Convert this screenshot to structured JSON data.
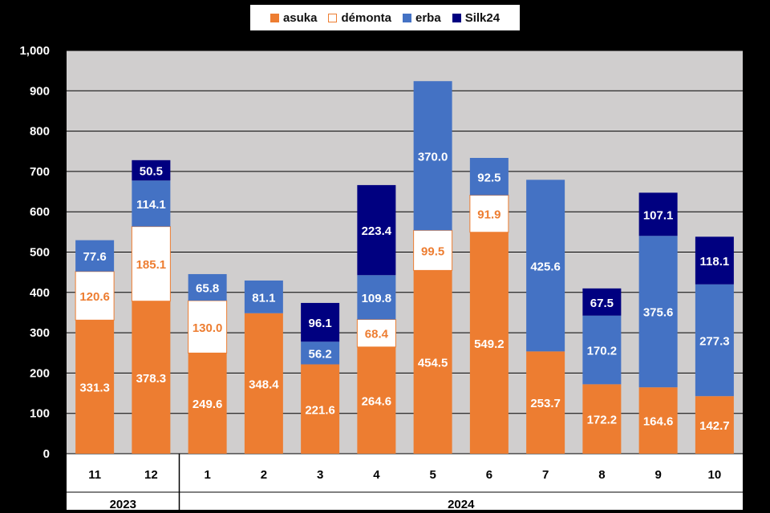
{
  "chart_data": {
    "type": "bar",
    "stacked": true,
    "categories": [
      "11",
      "12",
      "1",
      "2",
      "3",
      "4",
      "5",
      "6",
      "7",
      "8",
      "9",
      "10"
    ],
    "year_groups": [
      {
        "label": "2023",
        "count": 2
      },
      {
        "label": "2024",
        "count": 10
      }
    ],
    "series": [
      {
        "name": "asuka",
        "color": "#ED7D31",
        "label_color": "#FFFFFF",
        "values": [
          331.3,
          378.3,
          249.6,
          348.4,
          221.6,
          264.6,
          454.5,
          549.2,
          253.7,
          172.2,
          164.6,
          142.7
        ]
      },
      {
        "name": "démonta",
        "color": "#FFFFFF",
        "label_color": "#ED7D31",
        "values": [
          120.6,
          185.1,
          130.0,
          null,
          null,
          68.4,
          99.5,
          91.9,
          null,
          null,
          null,
          null
        ]
      },
      {
        "name": "erba",
        "color": "#4472C4",
        "label_color": "#FFFFFF",
        "values": [
          77.6,
          114.1,
          65.8,
          81.1,
          56.2,
          109.8,
          370.0,
          92.5,
          425.6,
          170.2,
          375.6,
          277.3
        ]
      },
      {
        "name": "Silk24",
        "color": "#000080",
        "label_color": "#FFFFFF",
        "values": [
          null,
          50.5,
          null,
          null,
          96.1,
          223.4,
          null,
          null,
          null,
          67.5,
          107.1,
          118.1
        ]
      }
    ],
    "value_labels": [
      [
        "331.3",
        "378.3",
        "249.6",
        "348.4",
        "221.6",
        "264.6",
        "454.5",
        "549.2",
        "253.7",
        "172.2",
        "164.6",
        "142.7"
      ],
      [
        "120.6",
        "185.1",
        "130.0",
        null,
        null,
        "68.4",
        "99.5",
        "91.9",
        null,
        null,
        null,
        null
      ],
      [
        "77.6",
        "114.1",
        "65.8",
        "81.1",
        "56.2",
        "109.8",
        "370.0",
        "92.5",
        "425.6",
        "170.2",
        "375.6",
        "277.3"
      ],
      [
        null,
        "50.5",
        null,
        null,
        "96.1",
        "223.4",
        null,
        null,
        null,
        "67.5",
        "107.1",
        "118.1"
      ]
    ],
    "ylim": [
      0,
      1000
    ],
    "yticks": [
      0,
      100,
      200,
      300,
      400,
      500,
      600,
      700,
      800,
      900,
      1000
    ],
    "ytick_labels": [
      "0",
      "100",
      "200",
      "300",
      "400",
      "500",
      "600",
      "700",
      "800",
      "900",
      "1,000"
    ],
    "grid": true,
    "legend_position": "top-center",
    "plot_background": "#D0CECE",
    "page_background": "#000000"
  }
}
